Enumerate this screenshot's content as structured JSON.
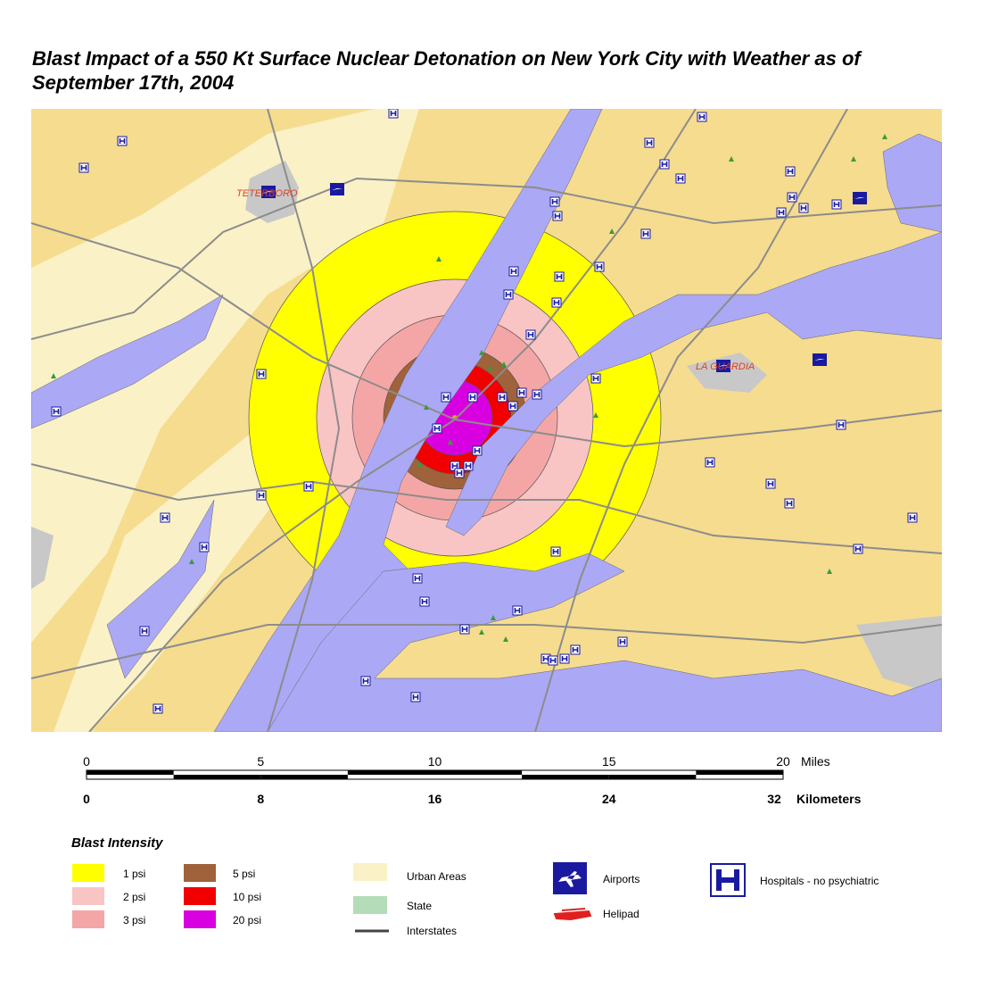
{
  "title": "Blast Impact of a 550 Kt Surface Nuclear Detonation on New York City with Weather as of September 17th, 2004",
  "map_labels": {
    "teterboro": "TETERBORO",
    "laguardia": "LA GUARDIA"
  },
  "scale_bar": {
    "miles": {
      "ticks": [
        0,
        5,
        10,
        15,
        20
      ],
      "unit": "Miles"
    },
    "kilometers": {
      "ticks": [
        0,
        8,
        16,
        24,
        32
      ],
      "unit": "Kilometers"
    }
  },
  "legend": {
    "blast_title": "Blast Intensity",
    "blast_items": [
      {
        "label": "1 psi",
        "color": "#ffff00"
      },
      {
        "label": "2 psi",
        "color": "#f9c4c4"
      },
      {
        "label": "3 psi",
        "color": "#f4a6a6"
      },
      {
        "label": "5 psi",
        "color": "#a0623a"
      },
      {
        "label": "10 psi",
        "color": "#f20000"
      },
      {
        "label": "20 psi",
        "color": "#d800e0"
      }
    ],
    "other_items": {
      "urban": "Urban Areas",
      "state": "State",
      "interstates": "Interstates",
      "airports": "Airports",
      "helipad": "Helipad",
      "hospitals": "Hospitals - no psychiatric"
    }
  }
}
